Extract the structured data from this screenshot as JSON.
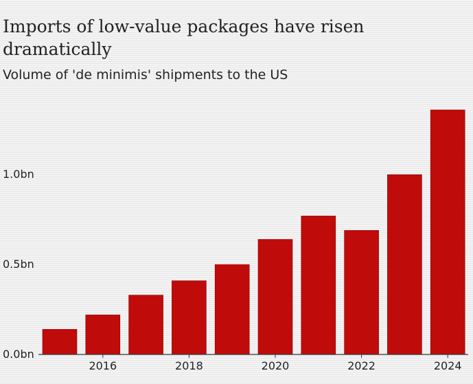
{
  "header": {
    "title": "Imports of low-value packages have risen dramatically",
    "subtitle": "Volume of 'de minimis' shipments to the US"
  },
  "colors": {
    "bar": "#c00b0b",
    "bar_edge": "#8e0000",
    "axis": "#333333"
  },
  "chart_data": {
    "type": "bar",
    "categories": [
      "2015",
      "2016",
      "2017",
      "2018",
      "2019",
      "2020",
      "2021",
      "2022",
      "2023",
      "2024"
    ],
    "values": [
      0.14,
      0.22,
      0.33,
      0.41,
      0.5,
      0.64,
      0.77,
      0.69,
      1.0,
      1.36
    ],
    "ylim": [
      0,
      1.36
    ],
    "yticks": [
      {
        "value": 0,
        "label": "0.0bn"
      },
      {
        "value": 0.5,
        "label": "0.5bn"
      },
      {
        "value": 1.0,
        "label": "1.0bn"
      }
    ],
    "xticks": [
      "2016",
      "2018",
      "2020",
      "2022",
      "2024"
    ],
    "grid": false
  }
}
